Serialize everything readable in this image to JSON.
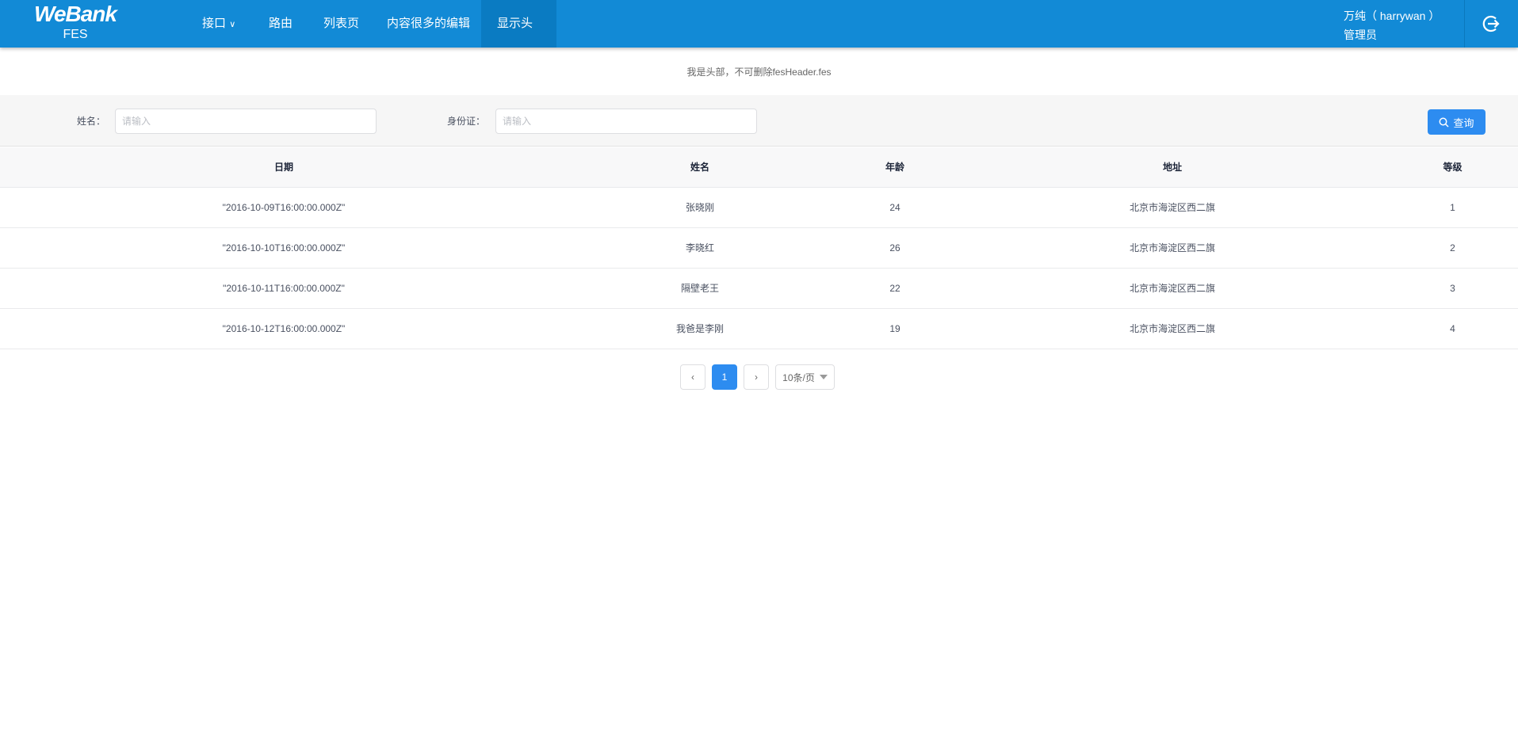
{
  "header": {
    "logo": "WeBank",
    "logo_sub": "FES",
    "nav": [
      {
        "label": "接口",
        "has_dropdown": true
      },
      {
        "label": "路由"
      },
      {
        "label": "列表页"
      },
      {
        "label": "内容很多的编辑"
      },
      {
        "label": "显示头部",
        "active": true
      }
    ],
    "user_name": "万纯（ harrywan ）",
    "user_role": "管理员",
    "logout_icon": "logout-icon"
  },
  "notice": "我是头部，不可删除fesHeader.fes",
  "filter": {
    "name_label": "姓名：",
    "name_placeholder": "请输入",
    "id_label": "身份证：",
    "id_placeholder": "请输入",
    "query_label": "查询",
    "query_icon": "search-icon"
  },
  "table": {
    "columns": [
      "日期",
      "姓名",
      "年龄",
      "地址",
      "等级"
    ],
    "rows": [
      [
        "\"2016-10-09T16:00:00.000Z\"",
        "张晓刚",
        "24",
        "北京市海淀区西二旗",
        "1"
      ],
      [
        "\"2016-10-10T16:00:00.000Z\"",
        "李晓红",
        "26",
        "北京市海淀区西二旗",
        "2"
      ],
      [
        "\"2016-10-11T16:00:00.000Z\"",
        "隔壁老王",
        "22",
        "北京市海淀区西二旗",
        "3"
      ],
      [
        "\"2016-10-12T16:00:00.000Z\"",
        "我爸是李刚",
        "19",
        "北京市海淀区西二旗",
        "4"
      ]
    ]
  },
  "pagination": {
    "current": "1",
    "page_size": "10条/页"
  },
  "colors": {
    "header": "#128ad6",
    "active_nav": "#0a7bc2",
    "primary": "#2d8cf0"
  }
}
